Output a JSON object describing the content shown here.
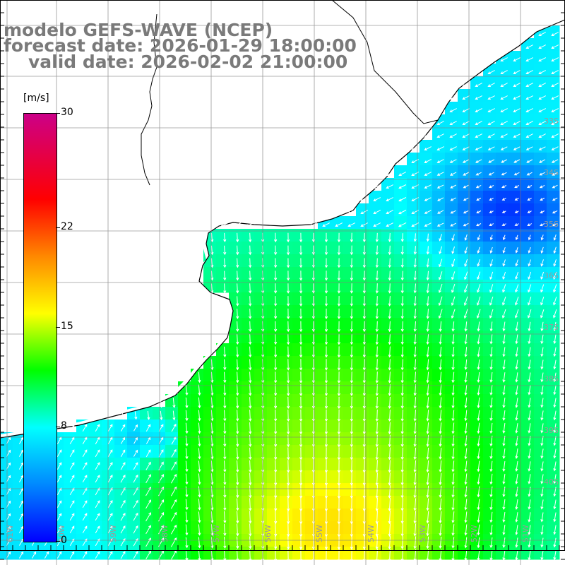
{
  "header": {
    "line1": "modelo GEFS-WAVE (NCEP)",
    "line2": "forecast date: 2026-01-29 18:00:00",
    "line3": "valid date: 2026-02-02 21:00:00"
  },
  "colorbar": {
    "unit": "[m/s]",
    "ticks": [
      "30",
      "22",
      "15",
      "8",
      "0"
    ],
    "tick_values": [
      30,
      22,
      15,
      8,
      0
    ],
    "range": [
      0,
      30
    ],
    "colors": [
      "#0000ff",
      "#0088ff",
      "#00ffff",
      "#00ff00",
      "#ffff00",
      "#ff8800",
      "#ff0000",
      "#cc0088"
    ]
  },
  "map": {
    "lat_labels": [
      "33S",
      "34S",
      "35S",
      "36S",
      "37S",
      "38S",
      "39S",
      "40S"
    ],
    "lon_labels": [
      "61W",
      "60W",
      "59W",
      "58W",
      "57W",
      "56W",
      "55W",
      "54W",
      "53W",
      "52W",
      "51W"
    ],
    "land_color": "#ffffff",
    "grid_color": "#808080",
    "coast_color": "#000000"
  }
}
